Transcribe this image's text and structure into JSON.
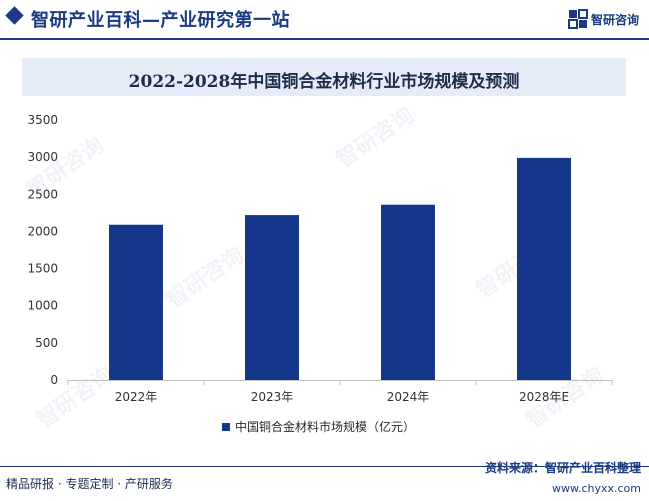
{
  "header": {
    "title": "智研产业百科—产业研究第一站",
    "logo_text": "智研咨询",
    "logo_icon": "zhiyan-logo-icon"
  },
  "chart_data": {
    "type": "bar",
    "title": "2022-2028年中国铜合金材料行业市场规模及预测",
    "categories": [
      "2022年",
      "2023年",
      "2024年",
      "2028年E"
    ],
    "series": [
      {
        "name": "中国铜合金材料市场规模（亿元）",
        "values": [
          2090,
          2220,
          2360,
          2990
        ]
      }
    ],
    "ylim": [
      0,
      3500
    ],
    "yticks": [
      0,
      500,
      1000,
      1500,
      2000,
      2500,
      3000,
      3500
    ],
    "xlabel": "",
    "ylabel": "",
    "grid": false,
    "legend_position": "bottom",
    "colors": {
      "bar": "#15378b"
    }
  },
  "watermark": {
    "text": "智研咨询"
  },
  "footer": {
    "left": "精品研报 · 专题定制 · 产研服务",
    "source": "资料来源：智研产业百科整理",
    "site": "www.chyxx.com"
  }
}
